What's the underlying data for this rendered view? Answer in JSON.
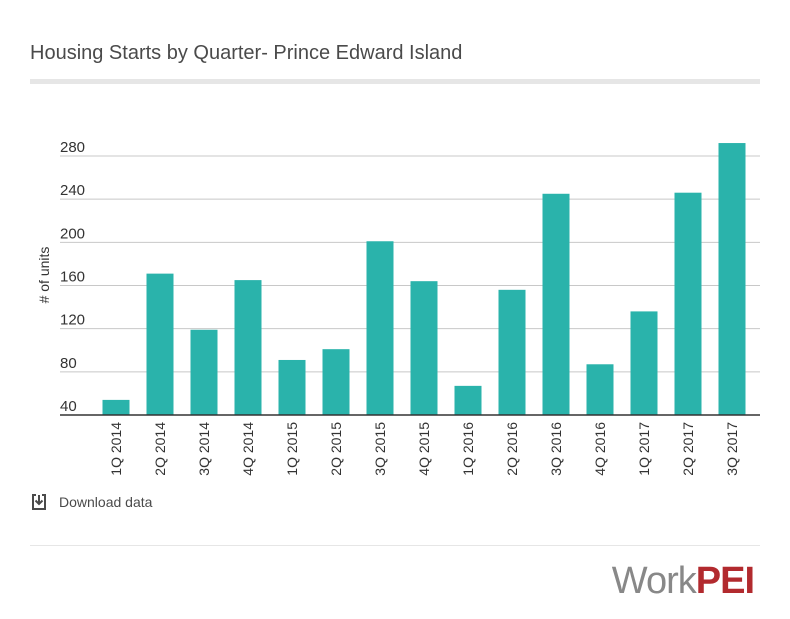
{
  "title": "Housing Starts by Quarter- Prince Edward Island",
  "download_label": "Download data",
  "logo": {
    "part1": "Work",
    "part2": "PEI"
  },
  "colors": {
    "bar": "#2ab3ab",
    "grid": "#c8c8c8",
    "axis": "#333333",
    "logo_work": "#888888",
    "logo_pei": "#b22a2e"
  },
  "icons": {
    "download": "download-icon"
  },
  "chart_data": {
    "type": "bar",
    "title": "Housing Starts by Quarter- Prince Edward Island",
    "xlabel": "",
    "ylabel": "# of units",
    "categories": [
      "1Q 2014",
      "2Q 2014",
      "3Q 2014",
      "4Q 2014",
      "1Q 2015",
      "2Q 2015",
      "3Q 2015",
      "4Q 2015",
      "1Q 2016",
      "2Q 2016",
      "3Q 2016",
      "4Q 2016",
      "1Q 2017",
      "2Q 2017",
      "3Q 2017"
    ],
    "values": [
      54,
      171,
      119,
      165,
      91,
      101,
      201,
      164,
      67,
      156,
      245,
      87,
      136,
      246,
      292
    ],
    "yticks": [
      40,
      80,
      120,
      160,
      200,
      240,
      280
    ],
    "ylim": [
      40,
      290
    ],
    "grid": true
  }
}
